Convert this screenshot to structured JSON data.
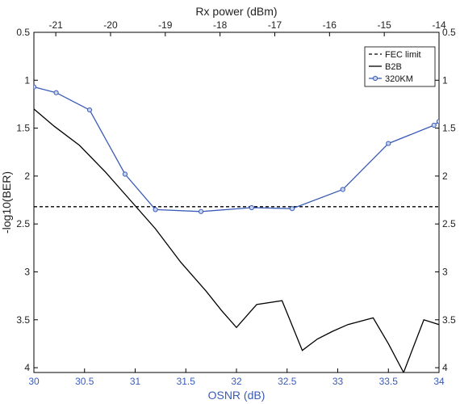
{
  "chart_data": {
    "type": "line",
    "xlabel": "OSNR (dB)",
    "x2label": "Rx power (dBm)",
    "ylabel": "-log10(BER)",
    "xlim": [
      30,
      34
    ],
    "x2lim": [
      -21.4,
      -14
    ],
    "ylim": [
      0.5,
      4.05
    ],
    "y_reversed": true,
    "grid": false,
    "legend_position": "top-right",
    "x_ticks": [
      "30",
      "30.5",
      "31",
      "31.5",
      "32",
      "32.5",
      "33",
      "33.5",
      "34"
    ],
    "x_tick_values": [
      30,
      30.5,
      31,
      31.5,
      32,
      32.5,
      33,
      33.5,
      34
    ],
    "x2_ticks": [
      "-21",
      "-20",
      "-19",
      "-18",
      "-17",
      "-16",
      "-15",
      "-14"
    ],
    "x2_tick_values": [
      -21,
      -20,
      -19,
      -18,
      -17,
      -16,
      -15,
      -14
    ],
    "y_ticks": [
      "0.5",
      "1",
      "1.5",
      "2",
      "2.5",
      "3",
      "3.5",
      "4"
    ],
    "y_tick_values": [
      0.5,
      1,
      1.5,
      2,
      2.5,
      3,
      3.5,
      4
    ],
    "series": [
      {
        "name": "FEC limit",
        "style": "dashed",
        "color": "#000000",
        "x": [
          30,
          34
        ],
        "y": [
          2.32,
          2.32
        ]
      },
      {
        "name": "B2B",
        "style": "solid",
        "color": "#000000",
        "x": [
          30,
          30.2,
          30.45,
          30.7,
          30.95,
          31.2,
          31.45,
          31.7,
          31.85,
          32.0,
          32.2,
          32.45,
          32.65,
          32.8,
          32.95,
          33.1,
          33.35,
          33.5,
          33.65,
          33.85,
          34.0
        ],
        "y": [
          1.3,
          1.48,
          1.68,
          1.95,
          2.25,
          2.55,
          2.9,
          3.2,
          3.4,
          3.58,
          3.34,
          3.3,
          3.82,
          3.7,
          3.62,
          3.55,
          3.48,
          3.75,
          4.05,
          3.5,
          3.55
        ]
      },
      {
        "name": "320KM",
        "style": "solid-marker",
        "color": "#3a5bb8",
        "x": [
          30.0,
          30.22,
          30.55,
          30.9,
          31.2,
          31.65,
          32.15,
          32.55,
          33.05,
          33.5,
          33.95,
          34.0
        ],
        "y": [
          1.07,
          1.13,
          1.31,
          1.98,
          2.35,
          2.37,
          2.33,
          2.34,
          2.14,
          1.66,
          1.47,
          1.43
        ]
      }
    ]
  }
}
